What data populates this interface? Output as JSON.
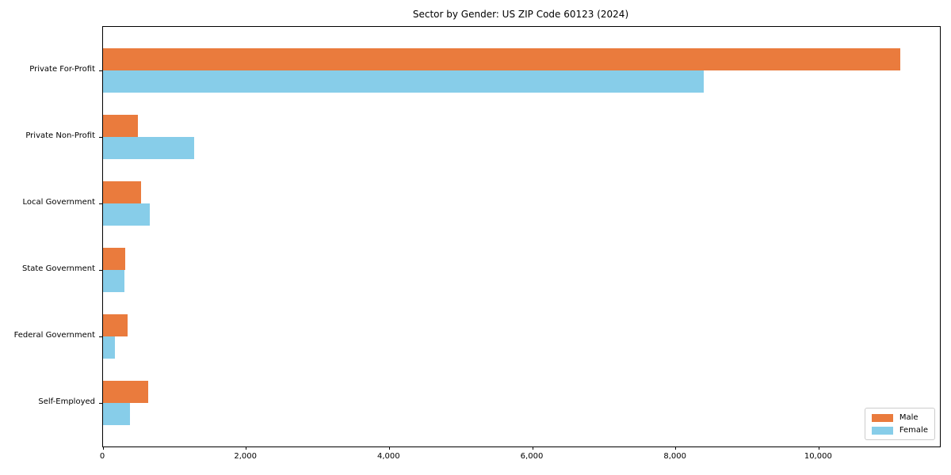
{
  "title": "Sector by Gender: US ZIP Code 60123 (2024)",
  "chart_data": {
    "type": "bar",
    "orientation": "horizontal",
    "title": "Sector by Gender: US ZIP Code 60123 (2024)",
    "categories": [
      "Private For-Profit",
      "Private Non-Profit",
      "Local Government",
      "State Government",
      "Federal Government",
      "Self-Employed"
    ],
    "series": [
      {
        "name": "Male",
        "color": "#ea7b3d",
        "values": [
          11140,
          485,
          535,
          305,
          345,
          630
        ]
      },
      {
        "name": "Female",
        "color": "#87cde9",
        "values": [
          8390,
          1270,
          655,
          300,
          165,
          375
        ]
      }
    ],
    "xlabel": "",
    "ylabel": "",
    "xlim": [
      0,
      11690
    ],
    "xticks": [
      0,
      2000,
      4000,
      6000,
      8000,
      10000
    ],
    "xtick_labels": [
      "0",
      "2,000",
      "4,000",
      "6,000",
      "8,000",
      "10,000"
    ],
    "grid": false,
    "legend_position": "lower right",
    "legend": {
      "items": [
        {
          "label": "Male",
          "color": "#ea7b3d"
        },
        {
          "label": "Female",
          "color": "#87cde9"
        }
      ]
    }
  }
}
